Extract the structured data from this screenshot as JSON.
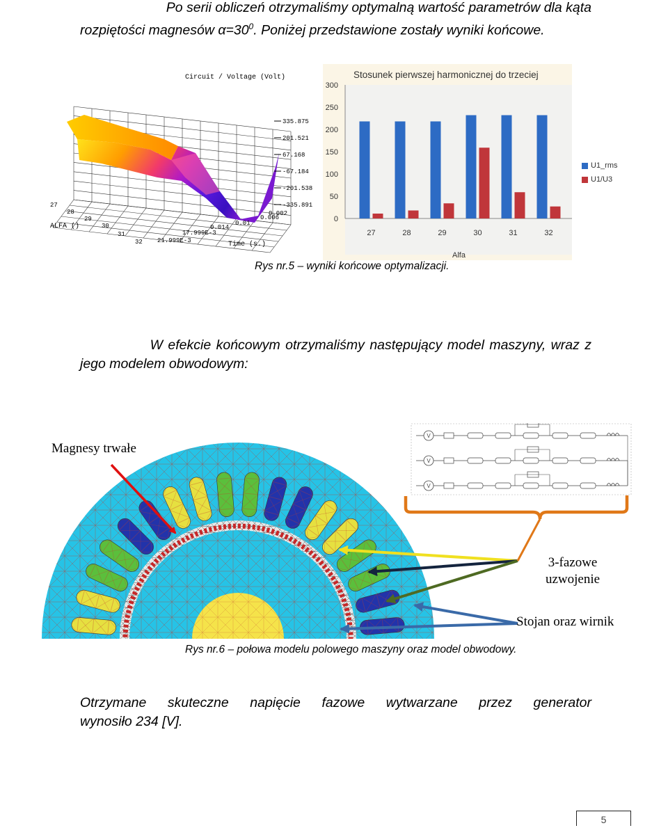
{
  "intro": {
    "line1": "Po serii obliczeń otrzymaliśmy optymalną wartość parametrów dla kąta",
    "line2_pre": "rozpiętości magnesów α=30",
    "line2_sup": "0",
    "line2_post": ". Poniżej przedstawione zostały wyniki końcowe."
  },
  "plot3d": {
    "title": "Circuit / Voltage (Volt)",
    "z_ticks": [
      "335.875",
      "201.521",
      "67.168",
      "-67.184",
      "-201.538",
      "-335.891"
    ],
    "alfa_label": "ALFA ()",
    "alfa_ticks": [
      "27",
      "28",
      "29",
      "30",
      "31",
      "32"
    ],
    "time_label": "Time (s.)",
    "time_ticks": [
      "21.999E-3",
      "17.999E-3",
      "0.014",
      "0.01",
      "0.006",
      "0.002"
    ]
  },
  "chart_data": {
    "type": "bar",
    "title": "Stosunek pierwszej harmonicznej do trzeciej",
    "xlabel": "Alfa",
    "ylabel": "",
    "categories": [
      "27",
      "28",
      "29",
      "30",
      "31",
      "32"
    ],
    "ylim": [
      0,
      300
    ],
    "y_ticks": [
      "0",
      "50",
      "100",
      "150",
      "200",
      "250",
      "300"
    ],
    "grid": false,
    "legend_position": "right",
    "series": [
      {
        "name": "U1_rms",
        "color": "#2d6bc4",
        "values": [
          218,
          218,
          218,
          232,
          232,
          232
        ]
      },
      {
        "name": "U1/U3",
        "color": "#c0363a",
        "values": [
          11,
          18,
          34,
          159,
          59,
          27
        ]
      }
    ]
  },
  "caption1": "Rys nr.5 – wyniki końcowe optymalizacji.",
  "para2": {
    "line1": "W efekcie końcowym otrzymaliśmy następujący model maszyny, wraz z",
    "line2": "jego modelem obwodowym:"
  },
  "figure2": {
    "label_magnets": "Magnesy trwałe",
    "label_winding_1": "3-fazowe",
    "label_winding_2": "uzwojenie",
    "label_stator": "Stojan oraz wirnik",
    "source_symbol": "V",
    "colors": {
      "background": "#26c3e6",
      "magnet": "#f5e34a",
      "phase_a": "#2233aa",
      "phase_b": "#5bbf3c",
      "phase_c": "#e6e040",
      "arrow_red": "#e01010",
      "brace_orange": "#e07818"
    }
  },
  "caption2": "Rys nr.6 – połowa modelu polowego maszyny oraz model obwodowy.",
  "para3": {
    "line1": "Otrzymane skuteczne napięcie fazowe wytwarzane przez generator",
    "line2": "wynosiło 234 [V]."
  },
  "page_number": "5"
}
